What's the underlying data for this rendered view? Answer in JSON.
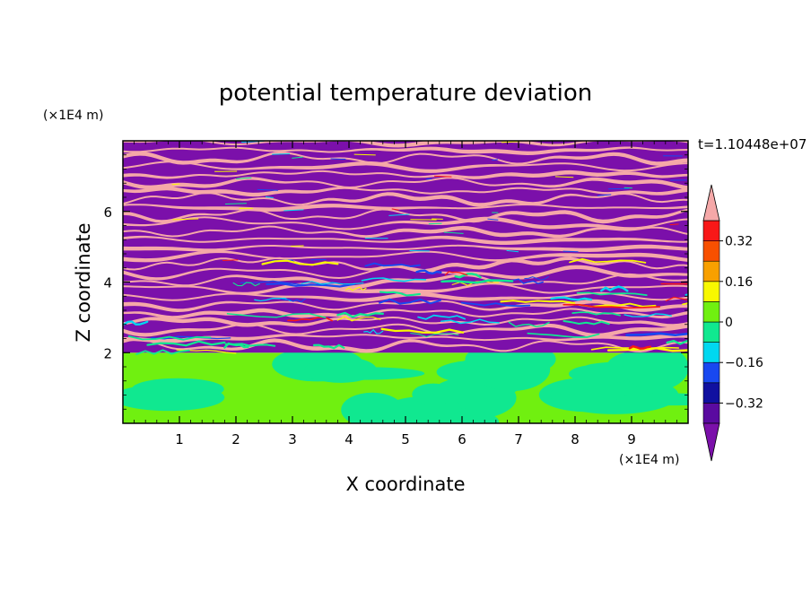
{
  "chart_data": {
    "type": "heatmap",
    "title": "potential temperature deviation",
    "xlabel": "X coordinate",
    "ylabel": "Z coordinate",
    "x_unit": "(×1E4 m)",
    "y_unit": "(×1E4 m)",
    "time_label": "t=1.10448e+07",
    "xlim": [
      0,
      10
    ],
    "ylim": [
      0,
      8
    ],
    "x_ticks": [
      1,
      2,
      3,
      4,
      5,
      6,
      7,
      8,
      9
    ],
    "y_ticks": [
      2,
      4,
      6
    ],
    "x_tick_labels": [
      "1",
      "2",
      "3",
      "4",
      "5",
      "6",
      "7",
      "8",
      "9"
    ],
    "y_tick_labels": [
      "2",
      "4",
      "6"
    ],
    "colorbar": {
      "levels": [
        -0.4,
        -0.32,
        -0.24,
        -0.16,
        -0.08,
        0,
        0.08,
        0.16,
        0.24,
        0.32,
        0.4
      ],
      "colors": [
        "#5a0aa0",
        "#1010a0",
        "#1848f0",
        "#00d8f0",
        "#10e890",
        "#70f010",
        "#f8f800",
        "#f8a000",
        "#f85000",
        "#f81818"
      ],
      "under_color": "#7b10aa",
      "over_color": "#f5a8a8",
      "tick_values": [
        0.32,
        0.16,
        0,
        -0.16,
        -0.32
      ],
      "tick_labels": [
        "0.32",
        "0.16",
        "0",
        "−0.16",
        "−0.32"
      ]
    },
    "lower_layer": {
      "z_top": 2.0,
      "background_color": "#70f010",
      "blob_color": "#10e890"
    },
    "upper_layer": {
      "z_bottom": 2.0,
      "z_top": 8.0,
      "band_colors": [
        "#7b10aa",
        "#f5a8a8"
      ],
      "band_count": 26,
      "edge_colors": [
        "#00d8f0",
        "#10e890",
        "#f8f800",
        "#f81818",
        "#1848f0"
      ]
    }
  }
}
